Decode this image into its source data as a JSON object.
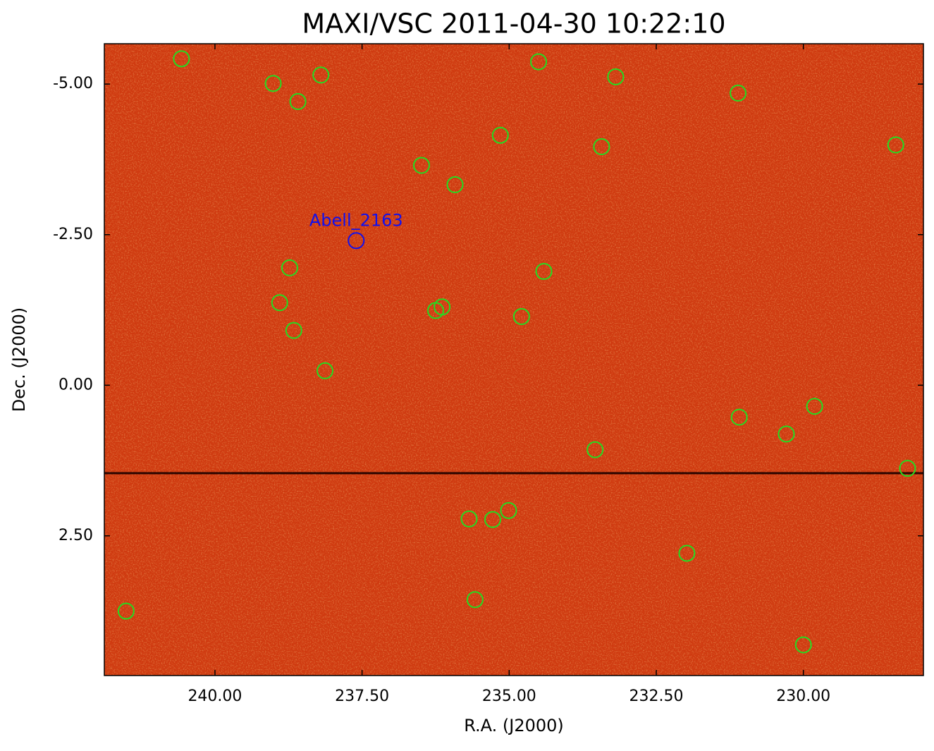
{
  "chart_data": {
    "type": "scatter",
    "title": "MAXI/VSC 2011-04-30 10:22:10",
    "x_label": "R.A. (J2000)",
    "y_label": "Dec. (J2000)",
    "xlim": [
      241.88,
      227.96
    ],
    "ylim": [
      4.82,
      -5.67
    ],
    "xticks": [
      {
        "value": 240,
        "label": "240.00"
      },
      {
        "value": 237.5,
        "label": "237.50"
      },
      {
        "value": 235,
        "label": "235.00"
      },
      {
        "value": 232.5,
        "label": "232.50"
      },
      {
        "value": 230,
        "label": "230.00"
      }
    ],
    "yticks": [
      {
        "value": -5,
        "label": "-5.00"
      },
      {
        "value": -2.5,
        "label": "-2.50"
      },
      {
        "value": 0,
        "label": "0.00"
      },
      {
        "value": 2.5,
        "label": "2.50"
      }
    ],
    "grid": false,
    "color": "#22dd22",
    "x": [
      240.57,
      239.01,
      238.2,
      238.59,
      234.5,
      233.19,
      231.11,
      235.15,
      233.43,
      228.43,
      236.49,
      235.92,
      238.73,
      234.41,
      238.9,
      236.25,
      236.14,
      234.79,
      238.66,
      238.13,
      229.81,
      231.09,
      230.29,
      233.54,
      228.23,
      235.68,
      235.28,
      235.01,
      231.98,
      235.58,
      241.51,
      230.0
    ],
    "y": [
      -5.42,
      -5.01,
      -5.15,
      -4.71,
      -5.37,
      -5.12,
      -4.85,
      -4.15,
      -3.96,
      -3.99,
      -3.65,
      -3.33,
      -1.95,
      -1.89,
      -1.37,
      -1.24,
      -1.3,
      -1.14,
      -0.91,
      -0.24,
      0.35,
      0.53,
      0.81,
      1.07,
      1.38,
      2.22,
      2.23,
      2.08,
      2.79,
      3.56,
      3.75,
      4.31
    ],
    "annotations": [
      {
        "text": "Abell_2163",
        "x": 237.6,
        "y": -2.4,
        "color": "#1010ee"
      }
    ]
  }
}
